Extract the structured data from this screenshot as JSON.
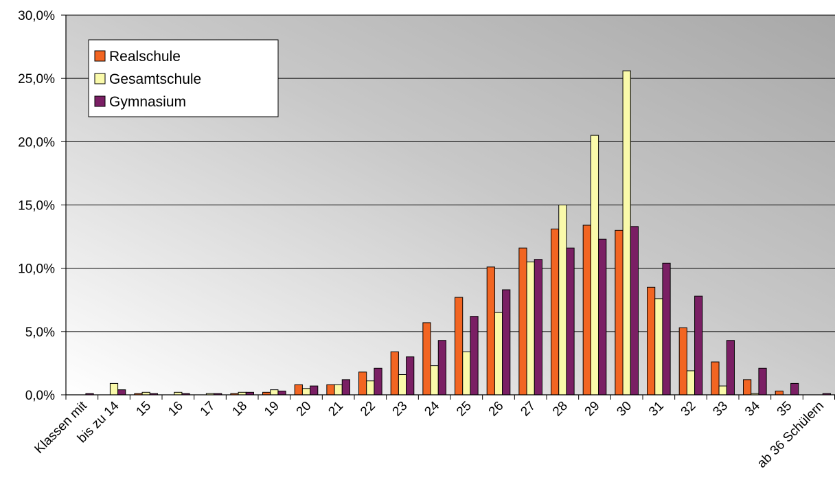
{
  "chart_data": {
    "type": "bar",
    "categories": [
      "Klassen mit",
      "bis zu 14",
      "15",
      "16",
      "17",
      "18",
      "19",
      "20",
      "21",
      "22",
      "23",
      "24",
      "25",
      "26",
      "27",
      "28",
      "29",
      "30",
      "31",
      "32",
      "33",
      "34",
      "35",
      "ab 36 Schülern"
    ],
    "series": [
      {
        "name": "Realschule",
        "color": "#f26522",
        "values": [
          0.0,
          0.0,
          0.1,
          0.0,
          0.0,
          0.1,
          0.2,
          0.8,
          0.8,
          1.8,
          3.4,
          5.7,
          7.7,
          10.1,
          11.6,
          13.1,
          13.4,
          13.0,
          8.5,
          5.3,
          2.6,
          1.2,
          0.3,
          0.0
        ]
      },
      {
        "name": "Gesamtschule",
        "color": "#fafaaa",
        "values": [
          0.0,
          0.9,
          0.2,
          0.2,
          0.1,
          0.2,
          0.4,
          0.5,
          0.8,
          1.1,
          1.6,
          2.3,
          3.4,
          6.5,
          10.5,
          15.0,
          20.5,
          25.6,
          7.6,
          1.9,
          0.7,
          0.1,
          0.0,
          0.0
        ]
      },
      {
        "name": "Gymnasium",
        "color": "#7a1f64",
        "values": [
          0.1,
          0.4,
          0.1,
          0.1,
          0.1,
          0.2,
          0.3,
          0.7,
          1.2,
          2.1,
          3.0,
          4.3,
          6.2,
          8.3,
          10.7,
          11.6,
          12.3,
          13.3,
          10.4,
          7.8,
          4.3,
          2.1,
          0.9,
          0.1
        ]
      }
    ],
    "yticks": [
      "0,0%",
      "5,0%",
      "10,0%",
      "15,0%",
      "20,0%",
      "25,0%",
      "30,0%"
    ],
    "ylim": [
      0,
      30
    ],
    "grid": true,
    "legend_position": "top-left",
    "title": "",
    "xlabel": "",
    "ylabel": ""
  }
}
